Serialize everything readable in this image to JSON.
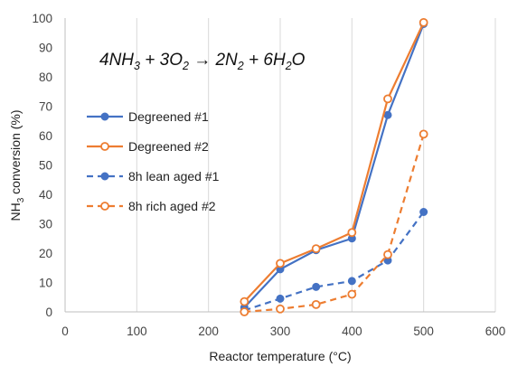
{
  "chart_data": {
    "type": "line",
    "title": "",
    "xlabel": "Reactor temperature (°C)",
    "ylabel_parts": {
      "main": "NH",
      "sub": "3",
      "rest": " conversion (%)"
    },
    "xlim": [
      0,
      600
    ],
    "ylim": [
      0,
      100
    ],
    "xticks": [
      0,
      100,
      200,
      300,
      400,
      500,
      600
    ],
    "yticks": [
      0,
      10,
      20,
      30,
      40,
      50,
      60,
      70,
      80,
      90,
      100
    ],
    "grid": "vertical",
    "legend_position": "left-center",
    "annotation": {
      "parts": [
        {
          "t": "4NH",
          "sub": false
        },
        {
          "t": "3",
          "sub": true
        },
        {
          "t": " + 3O",
          "sub": false
        },
        {
          "t": "2",
          "sub": true
        },
        {
          "t": " ",
          "sub": false
        },
        {
          "t": "→",
          "sub": false
        },
        {
          "t": " 2N",
          "sub": false
        },
        {
          "t": "2",
          "sub": true
        },
        {
          "t": " + 6H",
          "sub": false
        },
        {
          "t": "2",
          "sub": true
        },
        {
          "t": "O",
          "sub": false
        }
      ]
    },
    "series": [
      {
        "name": "Degreened #1",
        "color": "#4472C4",
        "dash": "solid",
        "marker": "filled",
        "x": [
          250,
          300,
          350,
          400,
          450,
          500
        ],
        "y": [
          1.5,
          14.5,
          21,
          25,
          67,
          98
        ]
      },
      {
        "name": "Degreened #2",
        "color": "#ED7D31",
        "dash": "solid",
        "marker": "open",
        "x": [
          250,
          300,
          350,
          400,
          450,
          500
        ],
        "y": [
          3.5,
          16.5,
          21.5,
          27,
          72.5,
          98.5
        ]
      },
      {
        "name": "8h lean aged #1",
        "color": "#4472C4",
        "dash": "dashed",
        "marker": "filled",
        "x": [
          250,
          300,
          350,
          400,
          450,
          500
        ],
        "y": [
          0.5,
          4.5,
          8.5,
          10.5,
          17.5,
          34
        ]
      },
      {
        "name": "8h rich aged #2",
        "color": "#ED7D31",
        "dash": "dashed",
        "marker": "open",
        "x": [
          250,
          300,
          350,
          400,
          450,
          500
        ],
        "y": [
          0,
          1,
          2.5,
          6,
          19.5,
          60.5
        ]
      }
    ]
  }
}
